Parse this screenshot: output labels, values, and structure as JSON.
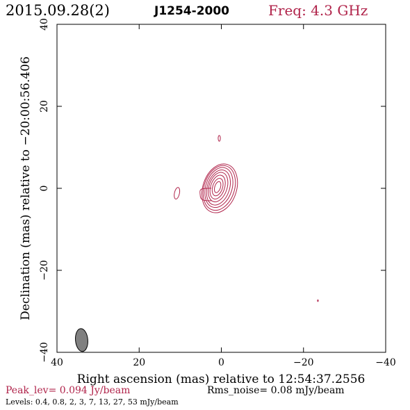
{
  "header": {
    "date": "2015.09.28(2)",
    "source": "J1254-2000",
    "freq": "Freq: 4.3 GHz"
  },
  "footer": {
    "peak": "Peak_lev=  0.094 Jy/beam",
    "rms": "Rms_noise= 0.08 mJy/beam",
    "levels": "Levels: 0.4,  0.8,    2,    3,    7,   13,   27,   53 mJy/beam"
  },
  "colors": {
    "contour": "#b0234a",
    "beam_fill": "#808080",
    "axis": "#000000"
  },
  "chart_data": {
    "type": "contour",
    "xlabel": "Right ascension (mas) relative to 12:54:37.2556",
    "ylabel": "Declination (mas) relative to −20:00:56.406",
    "xlim": [
      40,
      -40
    ],
    "ylim": [
      -40,
      40
    ],
    "x_ticks": [
      40,
      20,
      0,
      -20,
      -40
    ],
    "x_tick_labels": [
      "40",
      "20",
      "0",
      "−20",
      "−40"
    ],
    "y_ticks": [
      -40,
      -20,
      0,
      20,
      40
    ],
    "y_tick_labels": [
      "−40",
      "−20",
      "0",
      "20",
      "40"
    ],
    "contour_levels_mJy": [
      0.4,
      0.8,
      2,
      3,
      7,
      13,
      27,
      53
    ],
    "peak_Jy_per_beam": 0.094,
    "rms_mJy_per_beam": 0.08,
    "core": {
      "x": 0,
      "y": 0
    },
    "components": [
      {
        "x": 0.5,
        "y": 12.2,
        "note": "small northern knot"
      },
      {
        "x": 10.8,
        "y": -1.2,
        "note": "eastern knot"
      },
      {
        "x": 4.8,
        "y": -1.5,
        "note": "eastern extension"
      },
      {
        "x": -23.5,
        "y": -27.4,
        "note": "tiny spot"
      }
    ],
    "beam": {
      "x": 34,
      "y": -37,
      "major_mas": 4.5,
      "minor_mas": 2.0,
      "pa_deg": -5
    }
  }
}
